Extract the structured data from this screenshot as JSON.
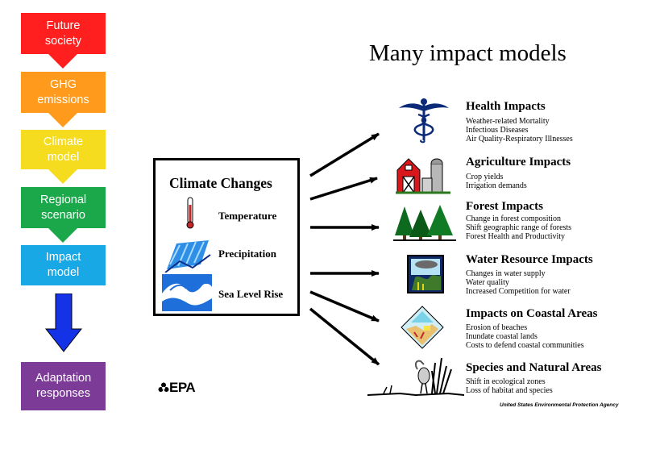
{
  "chain": [
    {
      "label": "Future\nsociety",
      "color": "#ff1f1f"
    },
    {
      "label": "GHG\nemissions",
      "color": "#ff9a1c"
    },
    {
      "label": "Climate\nmodel",
      "color": "#f5dc1e"
    },
    {
      "label": "Regional\nscenario",
      "color": "#1aa84a"
    },
    {
      "label": "Impact\nmodel",
      "color": "#18a8e6"
    },
    {
      "label": "Adaptation\nresponses",
      "color": "#7b3b96"
    }
  ],
  "big_arrow_color": "#1432e6",
  "title": "Many impact models",
  "climate_changes": {
    "title": "Climate Changes",
    "items": [
      {
        "label": "Temperature",
        "icon": "thermometer-icon"
      },
      {
        "label": "Precipitation",
        "icon": "rain-icon"
      },
      {
        "label": "Sea Level Rise",
        "icon": "wave-icon"
      }
    ]
  },
  "impacts": [
    {
      "title": "Health Impacts",
      "icon": "caduceus-icon",
      "lines": [
        "Weather-related Mortality",
        "Infectious Diseases",
        "Air Quality-Respiratory Illnesses"
      ]
    },
    {
      "title": "Agriculture Impacts",
      "icon": "barn-silo-icon",
      "lines": [
        "Crop yields",
        "Irrigation demands"
      ]
    },
    {
      "title": "Forest Impacts",
      "icon": "trees-icon",
      "lines": [
        "Change in forest composition",
        "Shift geographic range of forests",
        "Forest Health and Productivity"
      ]
    },
    {
      "title": "Water Resource Impacts",
      "icon": "water-resource-icon",
      "lines": [
        "Changes in water supply",
        "Water quality",
        "Increased Competition for water"
      ]
    },
    {
      "title": "Impacts on Coastal Areas",
      "icon": "coastal-icon",
      "lines": [
        "Erosion of beaches",
        "Inundate coastal lands",
        "Costs to defend coastal communities"
      ]
    },
    {
      "title": "Species and Natural Areas",
      "icon": "heron-icon",
      "lines": [
        "Shift in ecological zones",
        "Loss of habitat and species"
      ]
    }
  ],
  "footer": {
    "logo": "EPA",
    "agency": "United States Environmental Protection Agency"
  }
}
